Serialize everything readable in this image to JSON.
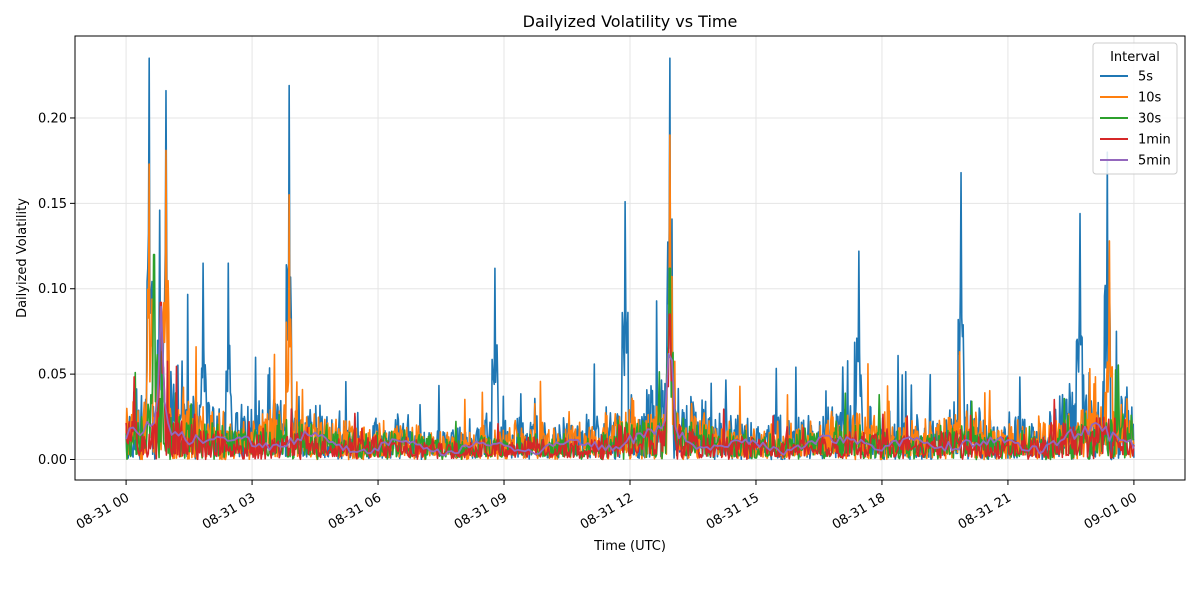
{
  "chart_data": {
    "type": "line",
    "title": "Dailyized Volatility vs Time",
    "xlabel": "Time (UTC)",
    "ylabel": "Dailyized Volatility",
    "x_range": [
      "2023-08-31 00:00",
      "2023-09-01 00:00"
    ],
    "xlim": [
      "2023-08-30 22:47",
      "2023-09-01 01:13"
    ],
    "ylim": [
      -0.012,
      0.248
    ],
    "x_tick_labels": [
      "08-31 00",
      "08-31 03",
      "08-31 06",
      "08-31 09",
      "08-31 12",
      "08-31 15",
      "08-31 18",
      "08-31 21",
      "09-01 00"
    ],
    "y_tick_labels": [
      "0.00",
      "0.05",
      "0.10",
      "0.15",
      "0.20"
    ],
    "y_ticks": [
      0.0,
      0.05,
      0.1,
      0.15,
      0.2
    ],
    "grid": true,
    "legend": {
      "title": "Interval",
      "placement": "top-right"
    },
    "series": [
      {
        "name": "5s",
        "color": "#1f77b4",
        "peaks": [
          {
            "time": "08-31 00:33",
            "value": 0.235
          },
          {
            "time": "08-31 00:57",
            "value": 0.216
          },
          {
            "time": "08-31 00:48",
            "value": 0.146
          },
          {
            "time": "08-31 01:50",
            "value": 0.115
          },
          {
            "time": "08-31 02:26",
            "value": 0.115
          },
          {
            "time": "08-31 03:53",
            "value": 0.219
          },
          {
            "time": "08-31 08:47",
            "value": 0.112
          },
          {
            "time": "08-31 11:53",
            "value": 0.151
          },
          {
            "time": "08-31 12:57",
            "value": 0.235
          },
          {
            "time": "08-31 17:27",
            "value": 0.122
          },
          {
            "time": "08-31 19:53",
            "value": 0.168
          },
          {
            "time": "08-31 22:43",
            "value": 0.144
          },
          {
            "time": "08-31 23:22",
            "value": 0.18
          }
        ]
      },
      {
        "name": "10s",
        "color": "#ff7f0e",
        "peaks": [
          {
            "time": "08-31 00:33",
            "value": 0.173
          },
          {
            "time": "08-31 00:57",
            "value": 0.181
          },
          {
            "time": "08-31 03:53",
            "value": 0.155
          },
          {
            "time": "08-31 12:57",
            "value": 0.19
          },
          {
            "time": "08-31 23:25",
            "value": 0.128
          }
        ]
      },
      {
        "name": "30s",
        "color": "#2ca02c",
        "peaks": [
          {
            "time": "08-31 00:40",
            "value": 0.12
          },
          {
            "time": "08-31 12:57",
            "value": 0.112
          }
        ]
      },
      {
        "name": "1min",
        "color": "#d62728",
        "peaks": [
          {
            "time": "08-31 00:50",
            "value": 0.092
          },
          {
            "time": "08-31 12:57",
            "value": 0.085
          }
        ]
      },
      {
        "name": "5min",
        "color": "#9467bd",
        "peaks": [
          {
            "time": "08-31 00:50",
            "value": 0.052
          },
          {
            "time": "08-31 12:57",
            "value": 0.04
          }
        ]
      }
    ]
  }
}
